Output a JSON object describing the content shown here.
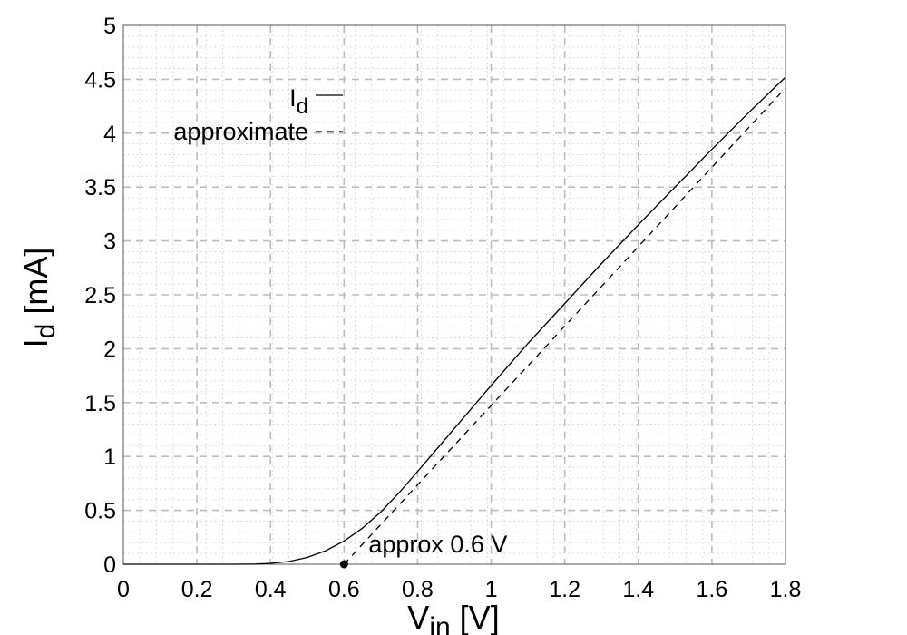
{
  "chart_data": {
    "type": "line",
    "xlabel": {
      "main": "V",
      "sub": "in",
      "rest": " [V]"
    },
    "ylabel": {
      "main": "I",
      "sub": "d",
      "rest": " [mA]"
    },
    "xlim": [
      0,
      1.8
    ],
    "ylim": [
      0,
      5
    ],
    "x_ticks": [
      "0",
      "0.2",
      "0.4",
      "0.6",
      "0.8",
      "1",
      "1.2",
      "1.4",
      "1.6",
      "1.8"
    ],
    "y_ticks": [
      "0",
      "0.5",
      "1",
      "1.5",
      "2",
      "2.5",
      "3",
      "3.5",
      "4",
      "4.5",
      "5"
    ],
    "grid": true,
    "minor_grid": true,
    "legend_position": "top-left",
    "series": [
      {
        "name_main": "I",
        "name_sub": "d",
        "style": "solid",
        "color": "#000000",
        "points": [
          [
            0.0,
            0.0
          ],
          [
            0.3,
            0.0
          ],
          [
            0.36,
            0.002
          ],
          [
            0.4,
            0.008
          ],
          [
            0.45,
            0.025
          ],
          [
            0.5,
            0.063
          ],
          [
            0.55,
            0.125
          ],
          [
            0.6,
            0.215
          ],
          [
            0.65,
            0.335
          ],
          [
            0.7,
            0.485
          ],
          [
            0.75,
            0.665
          ],
          [
            0.8,
            0.86
          ],
          [
            0.85,
            1.06
          ],
          [
            0.9,
            1.26
          ],
          [
            0.95,
            1.46
          ],
          [
            1.0,
            1.66
          ],
          [
            1.1,
            2.05
          ],
          [
            1.2,
            2.42
          ],
          [
            1.3,
            2.79
          ],
          [
            1.4,
            3.15
          ],
          [
            1.5,
            3.5
          ],
          [
            1.6,
            3.85
          ],
          [
            1.7,
            4.19
          ],
          [
            1.8,
            4.52
          ]
        ]
      },
      {
        "name_main": "approximate",
        "name_sub": "",
        "style": "dashed",
        "color": "#000000",
        "points": [
          [
            0.6,
            0.0
          ],
          [
            1.8,
            4.42
          ]
        ]
      }
    ],
    "annotations": [
      {
        "text": "approx 0.6 V",
        "x": 0.6,
        "y": 0.0,
        "marker": "dot"
      }
    ]
  }
}
